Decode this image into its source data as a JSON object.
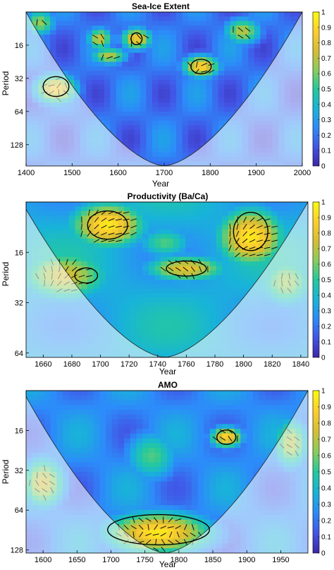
{
  "figure": {
    "colormap": [
      "#3d26a8",
      "#4255e6",
      "#2c8cf9",
      "#18b4d8",
      "#24c99d",
      "#8ccc5a",
      "#d7bd33",
      "#fcce2e",
      "#f9fb0e"
    ],
    "coi_shade": "rgba(255,255,255,0.55)",
    "significance_contour_color": "#000000"
  },
  "chart_data": [
    {
      "type": "heatmap",
      "title": "Sea-Ice Extent",
      "xlabel": "Year",
      "ylabel": "Period",
      "x_range": [
        1400,
        2000
      ],
      "x_ticks": [
        "1400",
        "1500",
        "1600",
        "1700",
        "1800",
        "1900",
        "2000"
      ],
      "y_scale": "log2",
      "y_range": [
        8,
        200
      ],
      "y_ticks": [
        "16",
        "32",
        "64",
        "128"
      ],
      "colorbar": {
        "range": [
          0,
          1
        ],
        "ticks": [
          "0",
          "0.1",
          "0.2",
          "0.3",
          "0.4",
          "0.5",
          "0.6",
          "0.7",
          "0.8",
          "0.9",
          "1"
        ]
      },
      "coi_apex_year": 1700,
      "hotspots": [
        {
          "x": 1465,
          "y": 40,
          "sx": 35,
          "sy": 0.35,
          "v": 0.85
        },
        {
          "x": 1780,
          "y": 25,
          "sx": 30,
          "sy": 0.25,
          "v": 0.9
        },
        {
          "x": 1640,
          "y": 14,
          "sx": 25,
          "sy": 0.25,
          "v": 0.85
        },
        {
          "x": 1580,
          "y": 20,
          "sx": 30,
          "sy": 0.2,
          "v": 0.7
        },
        {
          "x": 1870,
          "y": 12,
          "sx": 30,
          "sy": 0.3,
          "v": 0.7
        },
        {
          "x": 1430,
          "y": 10,
          "sx": 25,
          "sy": 0.3,
          "v": 0.65
        },
        {
          "x": 1560,
          "y": 14,
          "sx": 20,
          "sy": 0.25,
          "v": 0.75
        }
      ],
      "background_level": 0.2,
      "significant_regions": [
        {
          "x": 1465,
          "y": 38,
          "rx": 28,
          "ry": 0.3
        },
        {
          "x": 1780,
          "y": 25,
          "rx": 22,
          "ry": 0.22
        },
        {
          "x": 1640,
          "y": 14,
          "rx": 12,
          "ry": 0.18
        }
      ]
    },
    {
      "type": "heatmap",
      "title": "Productivity (Ba/Ca)",
      "xlabel": "Year",
      "ylabel": "Period",
      "x_range": [
        1648,
        1845
      ],
      "x_ticks": [
        "1660",
        "1680",
        "1700",
        "1720",
        "1740",
        "1760",
        "1780",
        "1800",
        "1820",
        "1840"
      ],
      "y_scale": "log2",
      "y_range": [
        8,
        68
      ],
      "y_ticks": [
        "16",
        "32",
        "64"
      ],
      "colorbar": {
        "range": [
          0,
          1
        ],
        "ticks": [
          "0",
          "0.1",
          "0.2",
          "0.3",
          "0.4",
          "0.5",
          "0.6",
          "0.7",
          "0.8",
          "0.9",
          "1"
        ]
      },
      "coi_apex_year": 1745,
      "hotspots": [
        {
          "x": 1705,
          "y": 11,
          "sx": 20,
          "sy": 0.35,
          "v": 0.95
        },
        {
          "x": 1805,
          "y": 13,
          "sx": 18,
          "sy": 0.45,
          "v": 0.95
        },
        {
          "x": 1760,
          "y": 20,
          "sx": 22,
          "sy": 0.2,
          "v": 0.8
        },
        {
          "x": 1675,
          "y": 22,
          "sx": 25,
          "sy": 0.4,
          "v": 0.75
        },
        {
          "x": 1830,
          "y": 24,
          "sx": 15,
          "sy": 0.4,
          "v": 0.65
        },
        {
          "x": 1745,
          "y": 14,
          "sx": 15,
          "sy": 0.25,
          "v": 0.55
        }
      ],
      "background_level": 0.35,
      "significant_regions": [
        {
          "x": 1705,
          "y": 11,
          "rx": 14,
          "ry": 0.28
        },
        {
          "x": 1805,
          "y": 12,
          "rx": 12,
          "ry": 0.38
        },
        {
          "x": 1760,
          "y": 20,
          "rx": 14,
          "ry": 0.15
        },
        {
          "x": 1690,
          "y": 22,
          "rx": 8,
          "ry": 0.15
        }
      ]
    },
    {
      "type": "heatmap",
      "title": "AMO",
      "xlabel": "Year",
      "ylabel": "Period",
      "x_range": [
        1575,
        1990
      ],
      "x_ticks": [
        "1600",
        "1650",
        "1700",
        "1750",
        "1800",
        "1850",
        "1900",
        "1950"
      ],
      "y_scale": "log2",
      "y_range": [
        8,
        135
      ],
      "y_ticks": [
        "16",
        "32",
        "64",
        "128"
      ],
      "colorbar": {
        "range": [
          0,
          1
        ],
        "ticks": [
          "0",
          "0.1",
          "0.2",
          "0.3",
          "0.4",
          "0.5",
          "0.6",
          "0.7",
          "0.8",
          "0.9",
          "1"
        ]
      },
      "coi_apex_year": 1780,
      "hotspots": [
        {
          "x": 1770,
          "y": 95,
          "sx": 60,
          "sy": 0.4,
          "v": 0.95
        },
        {
          "x": 1870,
          "y": 18,
          "sx": 18,
          "sy": 0.2,
          "v": 0.9
        },
        {
          "x": 1760,
          "y": 25,
          "sx": 30,
          "sy": 0.5,
          "v": 0.55
        },
        {
          "x": 1600,
          "y": 40,
          "sx": 25,
          "sy": 0.5,
          "v": 0.75
        },
        {
          "x": 1965,
          "y": 20,
          "sx": 20,
          "sy": 0.5,
          "v": 0.7
        }
      ],
      "background_level": 0.25,
      "significant_regions": [
        {
          "x": 1770,
          "y": 90,
          "rx": 75,
          "ry": 0.38
        },
        {
          "x": 1870,
          "y": 18,
          "rx": 14,
          "ry": 0.18
        }
      ]
    }
  ]
}
